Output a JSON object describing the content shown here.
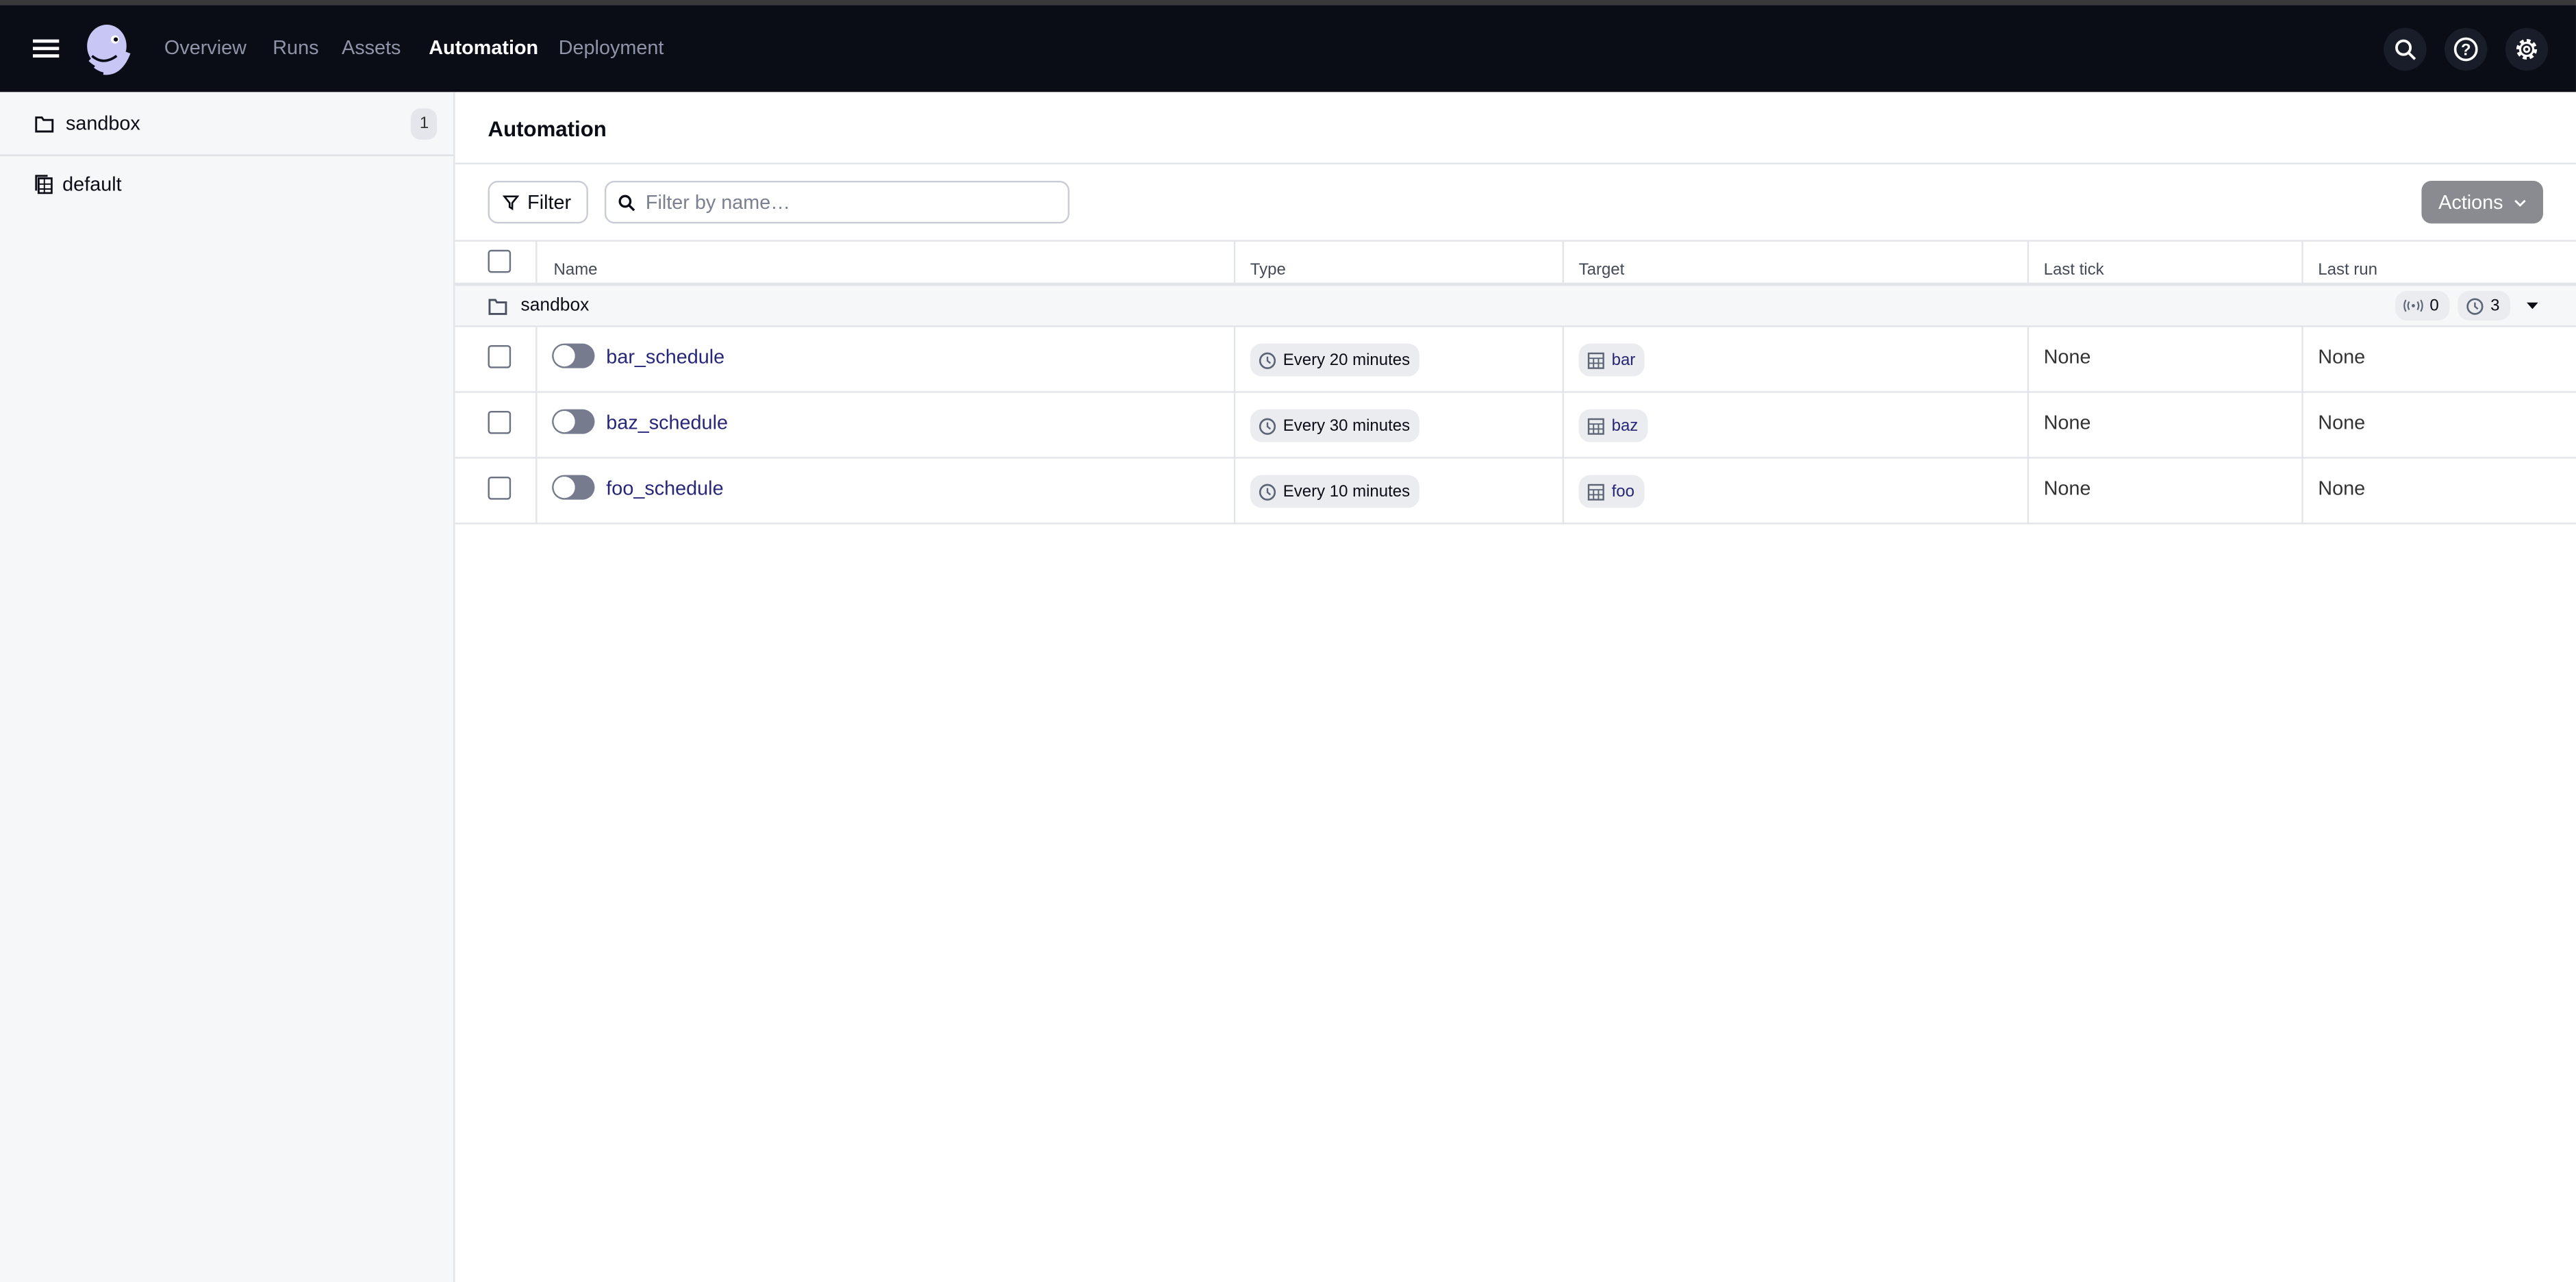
{
  "nav": {
    "links": [
      "Overview",
      "Runs",
      "Assets",
      "Automation",
      "Deployment"
    ],
    "active": "Automation"
  },
  "sidebar": {
    "items": [
      {
        "label": "sandbox",
        "count": "1",
        "icon": "folder-icon"
      },
      {
        "label": "default",
        "icon": "repository-icon"
      }
    ]
  },
  "main": {
    "title": "Automation",
    "filter_label": "Filter",
    "search_placeholder": "Filter by name…",
    "actions_label": "Actions",
    "columns": [
      "Name",
      "Type",
      "Target",
      "Last tick",
      "Last run"
    ],
    "group": {
      "label": "sandbox",
      "sensors_count": "0",
      "schedules_count": "3"
    },
    "rows": [
      {
        "name": "bar_schedule",
        "type": "Every 20 minutes",
        "target": "bar",
        "last_tick": "None",
        "last_run": "None",
        "enabled": false
      },
      {
        "name": "baz_schedule",
        "type": "Every 30 minutes",
        "target": "baz",
        "last_tick": "None",
        "last_run": "None",
        "enabled": false
      },
      {
        "name": "foo_schedule",
        "type": "Every 10 minutes",
        "target": "foo",
        "last_tick": "None",
        "last_run": "None",
        "enabled": false
      }
    ]
  },
  "colors": {
    "nav_bg": "#0a0d16",
    "link": "#272679",
    "actions_bg": "#8a8b90"
  }
}
